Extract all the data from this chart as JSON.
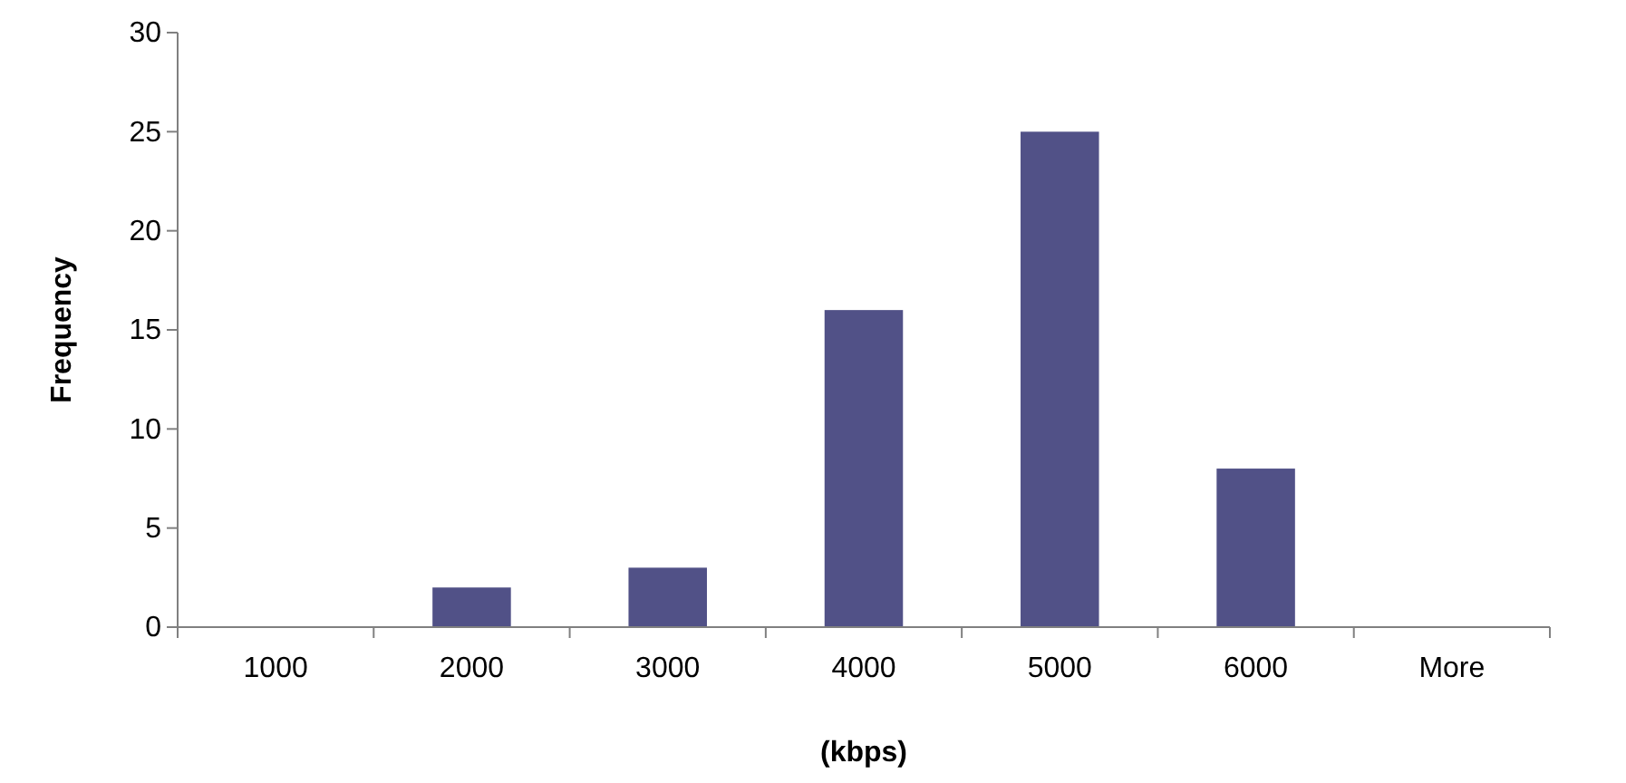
{
  "chart_data": {
    "type": "bar",
    "xlabel": "(kbps)",
    "ylabel": "Frequency",
    "categories": [
      "1000",
      "2000",
      "3000",
      "4000",
      "5000",
      "6000",
      "More"
    ],
    "values": [
      0,
      2,
      3,
      16,
      25,
      8,
      0
    ],
    "color": "#515187",
    "ylim": [
      0,
      30
    ],
    "yticks": [
      0,
      5,
      10,
      15,
      20,
      25,
      30
    ],
    "grid": false
  }
}
